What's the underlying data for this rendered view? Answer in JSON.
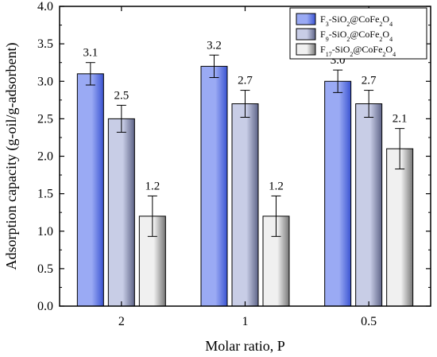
{
  "chart_data": {
    "type": "bar",
    "xlabel": "Molar ratio, P",
    "ylabel": "Adsorption capacity (g-oil/g-adsorbent)",
    "ylim": [
      0,
      4.0
    ],
    "yticks": [
      "0.0",
      "0.5",
      "1.0",
      "1.5",
      "2.0",
      "2.5",
      "3.0",
      "3.5",
      "4.0"
    ],
    "categories": [
      "2",
      "1",
      "0.5"
    ],
    "legend_position": "top-right",
    "series": [
      {
        "name": "F3-SiO2@CoFe2O4",
        "name_parts": [
          [
            "F",
            ""
          ],
          [
            "3",
            "sub"
          ],
          [
            "-SiO",
            ""
          ],
          [
            "2",
            "sub"
          ],
          [
            "@CoFe",
            ""
          ],
          [
            "2",
            "sub"
          ],
          [
            "O",
            ""
          ],
          [
            "4",
            "sub"
          ]
        ],
        "values": [
          3.1,
          3.2,
          3.0
        ],
        "errors": [
          0.15,
          0.15,
          0.15
        ],
        "labels": [
          "3.1",
          "3.2",
          "3.0"
        ],
        "color_light": "#9aaaf4",
        "color_dark": "#3b54d2"
      },
      {
        "name": "F9-SiO2@CoFe2O4",
        "name_parts": [
          [
            "F",
            ""
          ],
          [
            "9",
            "sub"
          ],
          [
            "-SiO",
            ""
          ],
          [
            "2",
            "sub"
          ],
          [
            "@CoFe",
            ""
          ],
          [
            "2",
            "sub"
          ],
          [
            "O",
            ""
          ],
          [
            "4",
            "sub"
          ]
        ],
        "values": [
          2.5,
          2.7,
          2.7
        ],
        "errors": [
          0.18,
          0.18,
          0.18
        ],
        "labels": [
          "2.5",
          "2.7",
          "2.7"
        ],
        "color_light": "#c8cde6",
        "color_dark": "#5e6488"
      },
      {
        "name": "F17-SiO2@CoFe2O4",
        "name_parts": [
          [
            "F",
            ""
          ],
          [
            "17",
            "sub"
          ],
          [
            "-SiO",
            ""
          ],
          [
            "2",
            "sub"
          ],
          [
            "@CoFe",
            ""
          ],
          [
            "2",
            "sub"
          ],
          [
            "O",
            ""
          ],
          [
            "4",
            "sub"
          ]
        ],
        "values": [
          1.2,
          1.2,
          2.1
        ],
        "errors": [
          0.27,
          0.27,
          0.27
        ],
        "labels": [
          "1.2",
          "1.2",
          "2.1"
        ],
        "color_light": "#f0f0f0",
        "color_dark": "#777777"
      }
    ]
  }
}
